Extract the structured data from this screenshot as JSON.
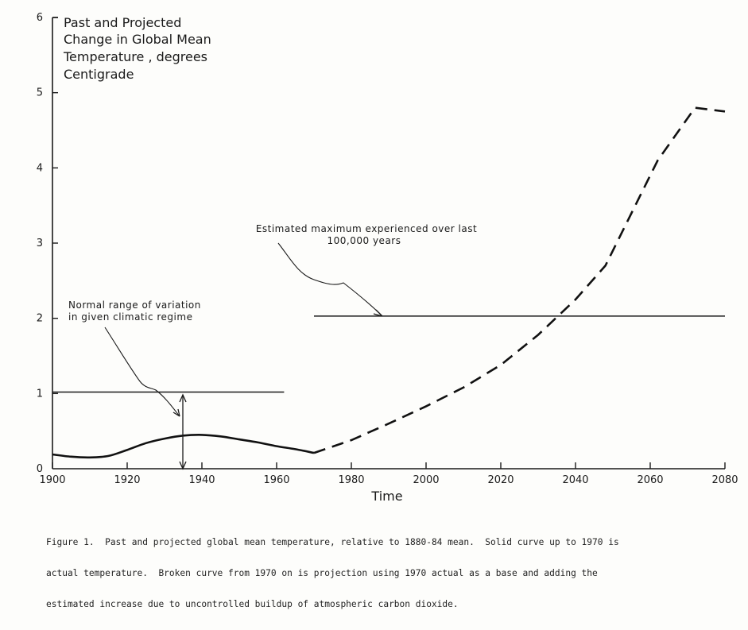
{
  "chart_data": {
    "type": "line",
    "title_lines": [
      "Past and Projected",
      "Change in Global Mean",
      "Temperature , degrees",
      "Centigrade"
    ],
    "xlabel": "Time",
    "ylabel": "",
    "xlim": [
      1900,
      2080
    ],
    "ylim": [
      0,
      6
    ],
    "x_ticks": [
      1900,
      1920,
      1940,
      1960,
      1980,
      2000,
      2020,
      2040,
      2060,
      2080
    ],
    "y_ticks": [
      0,
      1,
      2,
      3,
      4,
      5,
      6
    ],
    "series": [
      {
        "style": "solid",
        "x": [
          1900,
          1905,
          1910,
          1915,
          1920,
          1925,
          1930,
          1935,
          1940,
          1945,
          1950,
          1955,
          1960,
          1965,
          1970
        ],
        "y": [
          0.19,
          0.16,
          0.15,
          0.17,
          0.25,
          0.34,
          0.4,
          0.44,
          0.45,
          0.43,
          0.39,
          0.35,
          0.3,
          0.26,
          0.21
        ]
      },
      {
        "style": "dashed",
        "x": [
          1970,
          1980,
          1990,
          2000,
          2010,
          2020,
          2030,
          2040,
          2048,
          2055,
          2062,
          2072,
          2080
        ],
        "y": [
          0.21,
          0.38,
          0.6,
          0.83,
          1.08,
          1.38,
          1.78,
          2.25,
          2.7,
          3.4,
          4.1,
          4.8,
          4.75
        ]
      }
    ],
    "reference_lines": [
      {
        "y": 1.02,
        "x_start": 1900,
        "x_end": 1962
      },
      {
        "y": 2.03,
        "x_start": 1970,
        "x_end": 2080
      }
    ],
    "annotations": [
      {
        "lines": [
          "Estimated maximum experienced over last",
          "100,000 years"
        ]
      },
      {
        "lines": [
          "Normal range of variation",
          "in given climatic regime"
        ]
      }
    ]
  },
  "caption": [
    "Figure 1.  Past and projected global mean temperature, relative to 1880-84 mean.  Solid curve up to 1970 is",
    "actual temperature.  Broken curve from 1970 on is projection using 1970 actual as a base and adding the",
    "estimated increase due to uncontrolled buildup of atmospheric carbon dioxide."
  ],
  "colors": {
    "ink": "#1a1a1a",
    "paper": "#fdfdfb"
  }
}
